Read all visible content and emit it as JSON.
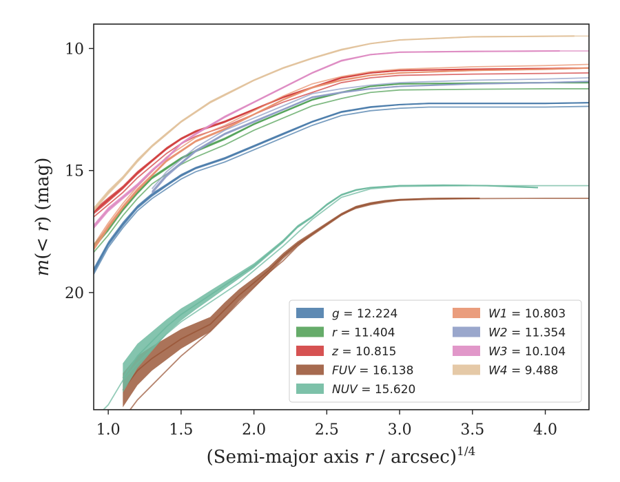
{
  "chart_data": {
    "type": "line",
    "xlabel_text": "(Semi-major axis ",
    "xlabel_var": "r",
    "xlabel_tail": " / arcsec)",
    "xlabel_sup": "1/4",
    "ylabel_pre": "m",
    "ylabel_mid": "(< ",
    "ylabel_var": "r",
    "ylabel_post": ") (mag)",
    "xlim": [
      0.9,
      4.3
    ],
    "ylim": [
      24.8,
      9.0
    ],
    "y_inverted": true,
    "xticks": [
      "1.0",
      "1.5",
      "2.0",
      "2.5",
      "3.0",
      "3.5",
      "4.0"
    ],
    "yticks": [
      "10",
      "15",
      "20"
    ],
    "legend_position": "lower-right",
    "legend": [
      {
        "band": "g",
        "value": "12.224"
      },
      {
        "band": "r",
        "value": "11.404"
      },
      {
        "band": "z",
        "value": "10.815"
      },
      {
        "band": "FUV",
        "value": "16.138"
      },
      {
        "band": "NUV",
        "value": "15.620"
      },
      {
        "band": "W1",
        "value": "10.803"
      },
      {
        "band": "W2",
        "value": "11.354"
      },
      {
        "band": "W3",
        "value": "10.104"
      },
      {
        "band": "W4",
        "value": "9.488"
      }
    ],
    "series": [
      {
        "name": "g = 12.224",
        "color": "#4c7dab",
        "x": [
          0.9,
          1.0,
          1.1,
          1.2,
          1.3,
          1.4,
          1.5,
          1.6,
          1.8,
          2.0,
          2.2,
          2.4,
          2.6,
          2.8,
          3.0,
          3.2,
          3.5,
          4.0,
          4.3
        ],
        "y": [
          19.1,
          18.0,
          17.2,
          16.5,
          16.0,
          15.6,
          15.2,
          14.9,
          14.5,
          14.0,
          13.5,
          13.0,
          12.6,
          12.4,
          12.3,
          12.25,
          12.25,
          12.25,
          12.22
        ],
        "band": [
          0.12,
          0.1,
          0.1,
          0.08,
          0.08,
          0.06,
          0.06,
          0.05,
          0.05,
          0.05,
          0.05,
          0.04,
          0.04,
          0.04,
          0.03,
          0.03,
          0.03,
          0.03,
          0.03
        ],
        "offsets": [
          0.0,
          0.15
        ]
      },
      {
        "name": "r = 11.404",
        "color": "#55a35a",
        "x": [
          0.9,
          1.0,
          1.1,
          1.2,
          1.3,
          1.4,
          1.5,
          1.6,
          1.8,
          2.0,
          2.2,
          2.4,
          2.6,
          2.8,
          3.0,
          3.5,
          4.0,
          4.3
        ],
        "y": [
          18.1,
          17.4,
          16.6,
          15.9,
          15.3,
          14.9,
          14.5,
          14.2,
          13.7,
          13.1,
          12.6,
          12.1,
          11.8,
          11.55,
          11.45,
          11.42,
          11.4,
          11.4
        ],
        "band": [
          0.1,
          0.1,
          0.08,
          0.08,
          0.06,
          0.06,
          0.05,
          0.05,
          0.05,
          0.04,
          0.04,
          0.04,
          0.04,
          0.03,
          0.03,
          0.03,
          0.03,
          0.03
        ],
        "offsets": [
          0.0,
          0.25
        ]
      },
      {
        "name": "z = 10.815",
        "color": "#d13f3f",
        "x": [
          0.9,
          1.0,
          1.1,
          1.2,
          1.3,
          1.4,
          1.5,
          1.6,
          1.8,
          2.0,
          2.2,
          2.4,
          2.6,
          2.8,
          3.0,
          3.5,
          4.0,
          4.3
        ],
        "y": [
          16.7,
          16.2,
          15.7,
          15.1,
          14.6,
          14.1,
          13.7,
          13.4,
          13.0,
          12.5,
          12.0,
          11.6,
          11.2,
          11.0,
          10.9,
          10.85,
          10.82,
          10.8
        ],
        "band": [
          0.1,
          0.1,
          0.08,
          0.08,
          0.06,
          0.06,
          0.05,
          0.05,
          0.05,
          0.04,
          0.04,
          0.04,
          0.04,
          0.03,
          0.03,
          0.03,
          0.03,
          0.03
        ],
        "offsets": [
          0.0,
          0.2
        ]
      },
      {
        "name": "FUV = 16.138",
        "color": "#9c5a3c",
        "x": [
          1.1,
          1.2,
          1.3,
          1.4,
          1.5,
          1.6,
          1.7,
          1.8,
          1.9,
          2.0,
          2.1,
          2.2,
          2.3,
          2.4,
          2.5,
          2.6,
          2.7,
          2.8,
          2.9,
          3.0,
          3.2,
          3.4,
          3.55
        ],
        "y": [
          24.0,
          23.2,
          22.7,
          22.3,
          21.9,
          21.6,
          21.3,
          20.7,
          20.1,
          19.6,
          19.1,
          18.5,
          18.0,
          17.6,
          17.2,
          16.8,
          16.5,
          16.35,
          16.25,
          16.2,
          16.15,
          16.14,
          16.14
        ],
        "band": [
          0.7,
          0.6,
          0.5,
          0.45,
          0.4,
          0.35,
          0.3,
          0.3,
          0.25,
          0.2,
          0.15,
          0.12,
          0.1,
          0.08,
          0.07,
          0.06,
          0.05,
          0.05,
          0.04,
          0.04,
          0.03,
          0.03,
          0.03
        ],
        "thin": {
          "x": [
            1.1,
            1.2,
            1.3,
            1.4,
            1.5,
            1.6,
            1.7,
            1.8,
            1.9,
            2.0,
            2.1,
            2.2,
            2.3,
            2.4,
            2.5,
            2.6,
            2.7,
            2.8,
            2.9,
            3.0,
            3.2,
            3.5,
            4.0,
            4.3
          ],
          "y": [
            25.2,
            24.4,
            23.8,
            23.2,
            22.6,
            22.1,
            21.6,
            21.0,
            20.4,
            19.8,
            19.2,
            18.7,
            18.1,
            17.6,
            17.2,
            16.8,
            16.55,
            16.4,
            16.3,
            16.22,
            16.18,
            16.15,
            16.14,
            16.14
          ]
        }
      },
      {
        "name": "NUV = 15.620",
        "color": "#6fbaa0",
        "x": [
          1.1,
          1.2,
          1.3,
          1.4,
          1.5,
          1.6,
          1.7,
          1.8,
          1.9,
          2.0,
          2.1,
          2.2,
          2.3,
          2.4,
          2.5,
          2.6,
          2.7,
          2.8,
          3.0,
          3.3,
          3.6,
          3.95
        ],
        "y": [
          23.5,
          22.6,
          22.0,
          21.4,
          20.9,
          20.5,
          20.1,
          19.7,
          19.3,
          18.9,
          18.4,
          17.9,
          17.3,
          16.9,
          16.4,
          16.0,
          15.8,
          15.7,
          15.62,
          15.6,
          15.62,
          15.7
        ],
        "band": [
          0.6,
          0.5,
          0.4,
          0.3,
          0.25,
          0.2,
          0.18,
          0.15,
          0.12,
          0.1,
          0.08,
          0.07,
          0.06,
          0.05,
          0.05,
          0.04,
          0.04,
          0.03,
          0.03,
          0.03,
          0.03,
          0.03
        ],
        "thin": {
          "x": [
            0.9,
            1.0,
            1.1,
            1.2,
            1.3,
            1.4,
            1.5,
            1.6,
            1.7,
            1.8,
            1.9,
            2.0,
            2.2,
            2.4,
            2.6,
            2.8,
            3.0,
            3.5,
            4.0,
            4.3
          ],
          "y": [
            25.2,
            24.6,
            23.6,
            22.9,
            22.3,
            21.7,
            21.2,
            20.8,
            20.4,
            20.0,
            19.6,
            19.1,
            18.1,
            17.0,
            16.1,
            15.75,
            15.65,
            15.62,
            15.62,
            15.62
          ]
        }
      },
      {
        "name": "W1 = 10.803",
        "color": "#e8926f",
        "x": [
          0.9,
          1.0,
          1.1,
          1.2,
          1.3,
          1.4,
          1.5,
          1.6,
          1.8,
          2.0,
          2.2,
          2.4,
          2.6,
          2.8,
          3.0,
          3.5,
          4.0,
          4.3
        ],
        "y": [
          18.2,
          17.3,
          16.5,
          15.8,
          15.2,
          14.6,
          14.2,
          13.8,
          13.3,
          12.7,
          12.1,
          11.6,
          11.3,
          11.1,
          11.0,
          10.9,
          10.85,
          10.8
        ],
        "band": [
          0.1,
          0.1,
          0.08,
          0.08,
          0.06,
          0.06,
          0.05,
          0.05,
          0.05,
          0.04,
          0.04,
          0.04,
          0.04,
          0.03,
          0.03,
          0.03,
          0.03,
          0.03
        ],
        "offsets": [
          0.0,
          -0.15
        ]
      },
      {
        "name": "W2 = 11.354",
        "color": "#8f9dc6",
        "x": [
          1.3,
          1.4,
          1.5,
          1.6,
          1.8,
          2.0,
          2.2,
          2.4,
          2.6,
          2.8,
          3.0,
          3.5,
          4.0,
          4.3
        ],
        "y": [
          15.9,
          15.2,
          14.7,
          14.2,
          13.5,
          13.0,
          12.5,
          12.0,
          11.8,
          11.65,
          11.55,
          11.45,
          11.4,
          11.35
        ],
        "band": [
          0.08,
          0.08,
          0.06,
          0.06,
          0.05,
          0.05,
          0.04,
          0.04,
          0.04,
          0.03,
          0.03,
          0.03,
          0.03,
          0.03
        ],
        "offsets": [
          0.0,
          -0.15
        ]
      },
      {
        "name": "W3 = 10.104",
        "color": "#de8cc3",
        "x": [
          0.9,
          1.0,
          1.1,
          1.2,
          1.3,
          1.4,
          1.5,
          1.6,
          1.8,
          2.0,
          2.2,
          2.4,
          2.6,
          2.8,
          3.0,
          3.5,
          4.1
        ],
        "y": [
          17.3,
          16.6,
          16.1,
          15.6,
          15.0,
          14.5,
          13.9,
          13.5,
          12.8,
          12.2,
          11.6,
          11.0,
          10.5,
          10.25,
          10.15,
          10.12,
          10.1
        ],
        "band": [
          0.1,
          0.1,
          0.08,
          0.08,
          0.06,
          0.06,
          0.05,
          0.05,
          0.05,
          0.04,
          0.04,
          0.04,
          0.04,
          0.03,
          0.03,
          0.03,
          0.03
        ],
        "thin": {
          "x": [
            4.1,
            4.3
          ],
          "y": [
            10.1,
            10.1
          ]
        }
      },
      {
        "name": "W4 = 9.488",
        "color": "#e2c39d",
        "x": [
          0.9,
          1.0,
          1.1,
          1.2,
          1.3,
          1.4,
          1.5,
          1.6,
          1.7,
          1.8,
          2.0,
          2.2,
          2.4,
          2.6,
          2.8,
          3.0,
          3.5,
          4.2
        ],
        "y": [
          16.6,
          15.9,
          15.3,
          14.6,
          14.0,
          13.5,
          13.0,
          12.6,
          12.2,
          11.9,
          11.3,
          10.8,
          10.4,
          10.05,
          9.8,
          9.65,
          9.52,
          9.49
        ],
        "band": [
          0.1,
          0.1,
          0.08,
          0.08,
          0.06,
          0.06,
          0.05,
          0.05,
          0.05,
          0.05,
          0.04,
          0.04,
          0.04,
          0.04,
          0.03,
          0.03,
          0.03,
          0.03
        ],
        "thin": {
          "x": [
            4.2,
            4.3
          ],
          "y": [
            9.49,
            9.49
          ]
        }
      }
    ]
  }
}
